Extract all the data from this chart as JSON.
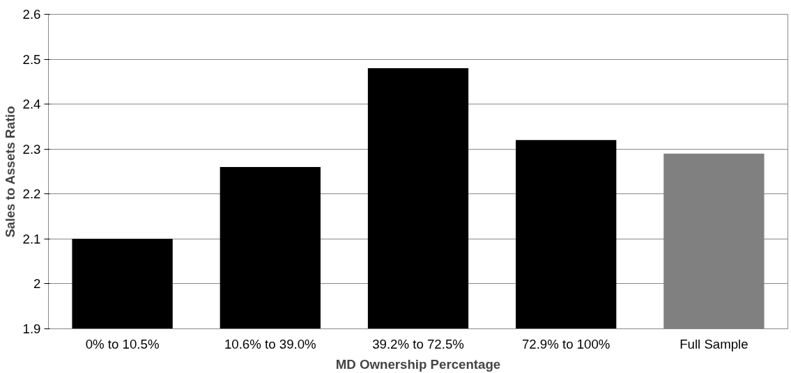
{
  "chart_data": {
    "type": "bar",
    "xlabel": "MD Ownership Percentage",
    "ylabel": "Sales to Assets Ratio",
    "categories": [
      "0% to 10.5%",
      "10.6% to 39.0%",
      "39.2% to 72.5%",
      "72.9% to 100%",
      "Full Sample"
    ],
    "values": [
      2.1,
      2.26,
      2.48,
      2.32,
      2.29
    ],
    "colors": [
      "#000000",
      "#000000",
      "#000000",
      "#000000",
      "#808080"
    ],
    "ylim": [
      1.9,
      2.6
    ],
    "yticks": [
      1.9,
      2,
      2.1,
      2.2,
      2.3,
      2.4,
      2.5,
      2.6
    ],
    "grid": "y"
  }
}
